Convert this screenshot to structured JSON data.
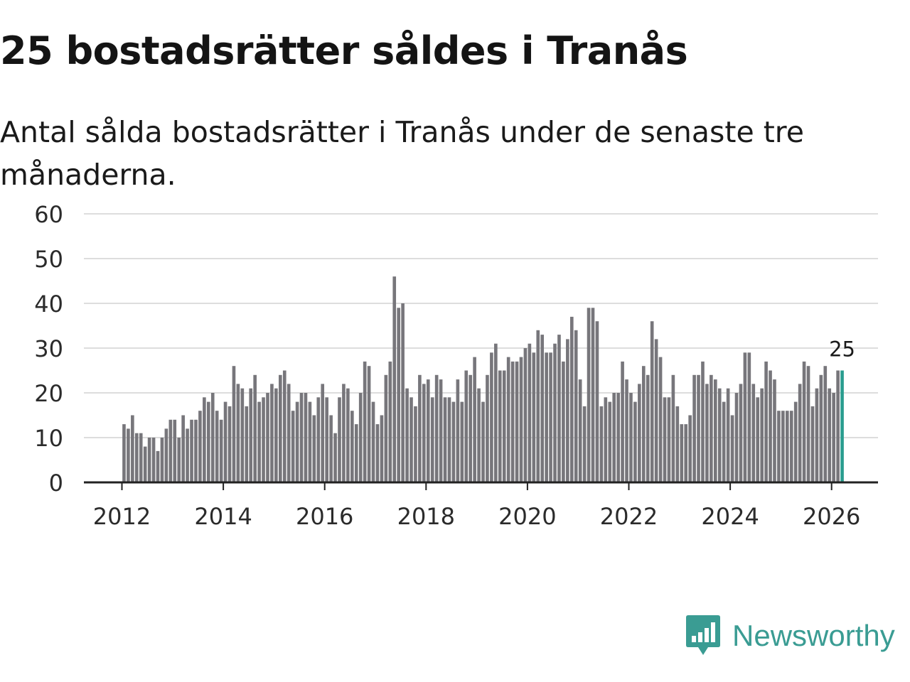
{
  "title": "25 bostadsrätter såldes i Tranås",
  "subtitle": "Antal sålda bostadsrätter i Tranås under de senaste tre månaderna.",
  "brand": {
    "name": "Newsworthy",
    "icon": "newsworthy-logo-icon"
  },
  "colors": {
    "bar": "#77767b",
    "highlight": "#2a9d8f",
    "grid": "#dddddd",
    "axis": "#222222",
    "brand": "#3a9c93"
  },
  "chart_data": {
    "type": "bar",
    "title": "25 bostadsrätter såldes i Tranås",
    "xlabel": "",
    "ylabel": "",
    "ylim": [
      0,
      60
    ],
    "yticks": [
      "0",
      "10",
      "20",
      "30",
      "40",
      "50",
      "60"
    ],
    "xticks": [
      "2012",
      "2014",
      "2016",
      "2018",
      "2020",
      "2022",
      "2024",
      "2026"
    ],
    "start_year": 2012,
    "start_month": 1,
    "annotation": {
      "label": "25",
      "index": 170
    },
    "highlight_index": 170,
    "values": [
      13,
      12,
      15,
      11,
      11,
      8,
      10,
      10,
      7,
      10,
      12,
      14,
      14,
      10,
      15,
      12,
      14,
      14,
      16,
      19,
      18,
      20,
      16,
      14,
      18,
      17,
      26,
      22,
      21,
      17,
      21,
      24,
      18,
      19,
      20,
      22,
      21,
      24,
      25,
      22,
      16,
      18,
      20,
      20,
      18,
      15,
      19,
      22,
      19,
      15,
      11,
      19,
      22,
      21,
      16,
      13,
      20,
      27,
      26,
      18,
      13,
      15,
      24,
      27,
      46,
      39,
      40,
      21,
      19,
      17,
      24,
      22,
      23,
      19,
      24,
      23,
      19,
      19,
      18,
      23,
      18,
      25,
      24,
      28,
      21,
      18,
      24,
      29,
      31,
      25,
      25,
      28,
      27,
      27,
      28,
      30,
      31,
      29,
      34,
      33,
      29,
      29,
      31,
      33,
      27,
      32,
      37,
      34,
      23,
      17,
      39,
      39,
      36,
      17,
      19,
      18,
      20,
      20,
      27,
      23,
      20,
      18,
      22,
      26,
      24,
      36,
      32,
      28,
      19,
      19,
      24,
      17,
      13,
      13,
      15,
      24,
      24,
      27,
      22,
      24,
      23,
      21,
      18,
      21,
      15,
      20,
      22,
      29,
      29,
      22,
      19,
      21,
      27,
      25,
      23,
      16,
      16,
      16,
      16,
      18,
      22,
      27,
      26,
      17,
      21,
      24,
      26,
      21,
      20,
      25,
      25
    ]
  }
}
